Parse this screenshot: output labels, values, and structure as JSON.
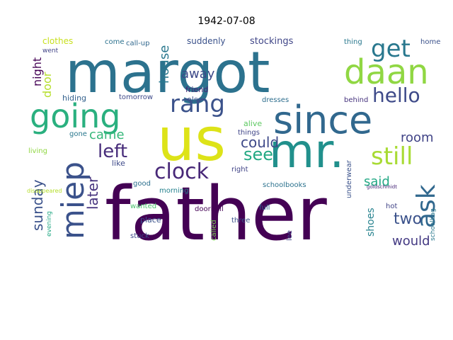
{
  "title": "1942-07-08",
  "palette": {
    "darkPurple": "#440154",
    "indigo": "#3b528b",
    "teal": "#21908c",
    "steel": "#31688e",
    "green": "#35b779",
    "lime": "#90d743",
    "yellow": "#dde318"
  },
  "words": [
    {
      "text": "father",
      "color": "#440154"
    },
    {
      "text": "margot",
      "color": "#2c728e"
    },
    {
      "text": "us",
      "color": "#dde318"
    },
    {
      "text": "mr.",
      "color": "#21908c"
    },
    {
      "text": "since",
      "color": "#31688e"
    },
    {
      "text": "going",
      "color": "#2ab07f"
    },
    {
      "text": "daan",
      "color": "#90d743"
    },
    {
      "text": "miep",
      "color": "#3b528b"
    },
    {
      "text": "get",
      "color": "#29788e"
    },
    {
      "text": "hello",
      "color": "#3e4a89"
    },
    {
      "text": "ask",
      "color": "#31688e"
    },
    {
      "text": "still",
      "color": "#a8db34"
    },
    {
      "text": "rang",
      "color": "#3b528b"
    },
    {
      "text": "clock",
      "color": "#482878"
    },
    {
      "text": "left",
      "color": "#472c7a"
    },
    {
      "text": "see",
      "color": "#23a983"
    },
    {
      "text": "could",
      "color": "#3e4989"
    },
    {
      "text": "sunday",
      "color": "#3b528b"
    },
    {
      "text": "later",
      "color": "#46337e"
    },
    {
      "text": "house",
      "color": "#2a788e"
    },
    {
      "text": "away",
      "color": "#3e4a89"
    },
    {
      "text": "came",
      "color": "#35b779"
    },
    {
      "text": "room",
      "color": "#414487"
    },
    {
      "text": "said",
      "color": "#22a884"
    },
    {
      "text": "two",
      "color": "#3b528b"
    },
    {
      "text": "would",
      "color": "#443a83"
    },
    {
      "text": "shoes",
      "color": "#26828e"
    },
    {
      "text": "night",
      "color": "#440154"
    },
    {
      "text": "door",
      "color": "#b5de2b"
    },
    {
      "text": "clothes",
      "color": "#c8e020"
    },
    {
      "text": "stockings",
      "color": "#404688"
    },
    {
      "text": "suddenly",
      "color": "#3b528b"
    },
    {
      "text": "call-up",
      "color": "#31688e"
    },
    {
      "text": "come",
      "color": "#2c728e"
    },
    {
      "text": "thing",
      "color": "#2a788e"
    },
    {
      "text": "home",
      "color": "#3b528b"
    },
    {
      "text": "went",
      "color": "#414487"
    },
    {
      "text": "hiding",
      "color": "#34618d"
    },
    {
      "text": "tomorrow",
      "color": "#3e4989"
    },
    {
      "text": "friend",
      "color": "#482475"
    },
    {
      "text": "else",
      "color": "#3b528b"
    },
    {
      "text": "dresses",
      "color": "#2e6e8e"
    },
    {
      "text": "behind",
      "color": "#46337e"
    },
    {
      "text": "gone",
      "color": "#2a788e"
    },
    {
      "text": "alive",
      "color": "#5ec962"
    },
    {
      "text": "things",
      "color": "#404688"
    },
    {
      "text": "living",
      "color": "#90d743"
    },
    {
      "text": "like",
      "color": "#3e4a89"
    },
    {
      "text": "right",
      "color": "#414487"
    },
    {
      "text": "good",
      "color": "#2d708e"
    },
    {
      "text": "morning",
      "color": "#26828e"
    },
    {
      "text": "schoolbooks",
      "color": "#2c728e"
    },
    {
      "text": "underwear",
      "color": "#3b528b"
    },
    {
      "text": "schoolbag",
      "color": "#2a788e"
    },
    {
      "text": "hot",
      "color": "#414487"
    },
    {
      "text": "evening",
      "color": "#22a884"
    },
    {
      "text": "wanted",
      "color": "#4ac16d"
    },
    {
      "text": "place",
      "color": "#3b528b"
    },
    {
      "text": "stuck",
      "color": "#3e4989"
    },
    {
      "text": "doorbell",
      "color": "#440154"
    },
    {
      "text": "called",
      "color": "#7ad151"
    },
    {
      "text": "three",
      "color": "#3b528b"
    },
    {
      "text": "full",
      "color": "#31688e"
    },
    {
      "text": "lee",
      "color": "#414487"
    },
    {
      "text": "disappeared",
      "color": "#b5de2b"
    },
    {
      "text": "goldschmidt",
      "color": "#482878"
    }
  ]
}
